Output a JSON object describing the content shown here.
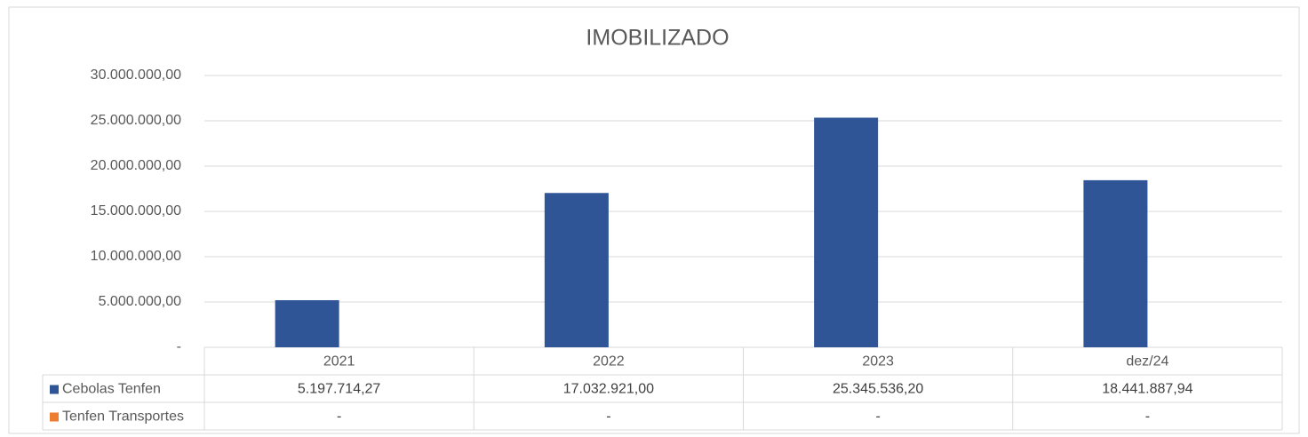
{
  "chart_data": {
    "type": "bar",
    "title": "IMOBILIZADO",
    "categories": [
      "2021",
      "2022",
      "2023",
      "dez/24"
    ],
    "series": [
      {
        "name": "Cebolas Tenfen",
        "color": "#2f5597",
        "values": [
          5197714.27,
          17032921.0,
          25345536.2,
          18441887.94
        ],
        "value_labels": [
          "5.197.714,27",
          "17.032.921,00",
          "25.345.536,20",
          "18.441.887,94"
        ]
      },
      {
        "name": "Tenfen Transportes",
        "color": "#ed7d31",
        "values": [
          0,
          0,
          0,
          0
        ],
        "value_labels": [
          "-",
          "-",
          "-",
          "-"
        ]
      }
    ],
    "ylim": [
      0,
      30000000
    ],
    "yticks": [
      {
        "value": 0,
        "label": "-"
      },
      {
        "value": 5000000,
        "label": "5.000.000,00"
      },
      {
        "value": 10000000,
        "label": "10.000.000,00"
      },
      {
        "value": 15000000,
        "label": "15.000.000,00"
      },
      {
        "value": 20000000,
        "label": "20.000.000,00"
      },
      {
        "value": 25000000,
        "label": "25.000.000,00"
      },
      {
        "value": 30000000,
        "label": "30.000.000,00"
      }
    ],
    "grid": true,
    "legend": "table"
  }
}
